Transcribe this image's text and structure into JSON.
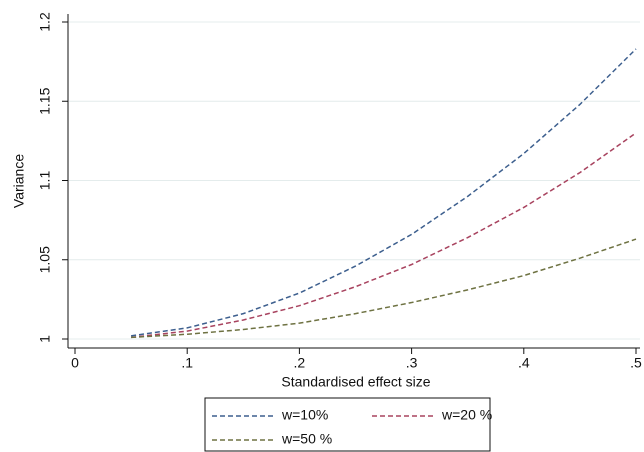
{
  "chart_data": {
    "type": "line",
    "x_label": "Standardised effect size",
    "y_label": "Variance",
    "x": [
      0.05,
      0.1,
      0.15,
      0.2,
      0.25,
      0.3,
      0.35,
      0.4,
      0.45,
      0.5
    ],
    "series": [
      {
        "name": "w=10%",
        "color": "#3d5f8e",
        "values": [
          1.002,
          1.007,
          1.016,
          1.029,
          1.046,
          1.066,
          1.09,
          1.117,
          1.148,
          1.183
        ]
      },
      {
        "name": "w=20 %",
        "color": "#a8435f",
        "values": [
          1.001,
          1.005,
          1.012,
          1.021,
          1.033,
          1.047,
          1.064,
          1.083,
          1.105,
          1.13
        ]
      },
      {
        "name": "w=50 %",
        "color": "#6e7242",
        "values": [
          1.001,
          1.003,
          1.006,
          1.01,
          1.016,
          1.023,
          1.031,
          1.04,
          1.051,
          1.063
        ]
      }
    ],
    "xlim": [
      0,
      0.5
    ],
    "xticks": [
      0,
      {
        "value": 0.1,
        "label": ".1"
      },
      {
        "value": 0.2,
        "label": ".2"
      },
      {
        "value": 0.3,
        "label": ".3"
      },
      {
        "value": 0.4,
        "label": ".4"
      },
      {
        "value": 0.5,
        "label": ".5"
      }
    ],
    "ylim": [
      1,
      1.2
    ],
    "yticks": [
      1,
      1.05,
      1.1,
      1.15,
      1.2
    ],
    "grid": true,
    "legend": "bottom"
  }
}
